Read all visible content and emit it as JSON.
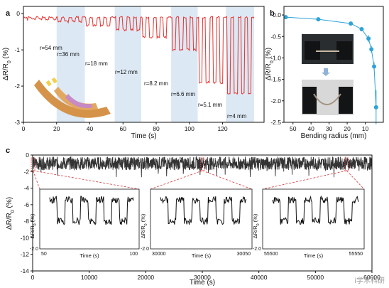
{
  "watermark": "i学术科研",
  "chart_data": [
    {
      "panel": "a",
      "type": "line",
      "xlabel": "Time (s)",
      "ylabel": "ΔR/R0 (%)",
      "xlim": [
        0,
        145
      ],
      "ylim": [
        -3,
        0.2
      ],
      "xticks": [
        0,
        20,
        40,
        60,
        80,
        100,
        120
      ],
      "yticks": [
        0,
        -1,
        -2,
        -3
      ],
      "line_color": "#e8332f",
      "shaded_bands": [
        [
          20,
          37
        ],
        [
          55,
          71
        ],
        [
          89,
          105
        ],
        [
          122,
          139
        ]
      ],
      "regions": [
        {
          "label": "r=54 mm",
          "start": 0,
          "end": 20,
          "dip": -0.05
        },
        {
          "label": "r=36 mm",
          "start": 20,
          "end": 37,
          "dip": -0.12
        },
        {
          "label": "r=18 mm",
          "start": 37,
          "end": 55,
          "dip": -0.22
        },
        {
          "label": "r=12 mm",
          "start": 55,
          "end": 71,
          "dip": -0.35
        },
        {
          "label": "r=8.2 mm",
          "start": 71,
          "end": 89,
          "dip": -0.55
        },
        {
          "label": "r=6.6 mm",
          "start": 89,
          "end": 105,
          "dip": -0.9
        },
        {
          "label": "r=5.1 mm",
          "start": 105,
          "end": 122,
          "dip": -1.8
        },
        {
          "label": "r=4 mm",
          "start": 122,
          "end": 139,
          "dip": -2.1
        }
      ]
    },
    {
      "panel": "b",
      "type": "scatter",
      "xlabel": "Bending radius (mm)",
      "ylabel": "ΔR/R0 (%)",
      "x_reversed": true,
      "xlim": [
        55,
        0
      ],
      "ylim": [
        -2.5,
        0.2
      ],
      "xticks": [
        50,
        40,
        30,
        20,
        10
      ],
      "yticks": [
        0.0,
        -0.5,
        -1.0,
        -1.5,
        -2.0,
        -2.5
      ],
      "marker_color": "#2ea3d8",
      "points": [
        {
          "x": 54,
          "y": -0.05,
          "err": 0.02
        },
        {
          "x": 36,
          "y": -0.1,
          "err": 0.02
        },
        {
          "x": 18,
          "y": -0.2,
          "err": 0.03
        },
        {
          "x": 12,
          "y": -0.33,
          "err": 0.05
        },
        {
          "x": 8.2,
          "y": -0.55,
          "err": 0.08
        },
        {
          "x": 6.6,
          "y": -0.8,
          "err": 0.08
        },
        {
          "x": 5.1,
          "y": -1.2,
          "err": 0.1
        },
        {
          "x": 4,
          "y": -2.15,
          "err": 0.4
        }
      ]
    },
    {
      "panel": "c",
      "type": "line",
      "xlabel": "Time (s)",
      "ylabel": "ΔR/R0 (%)",
      "xlim": [
        0,
        60000
      ],
      "ylim": [
        -14,
        0
      ],
      "xticks": [
        0,
        10000,
        20000,
        30000,
        40000,
        50000,
        60000
      ],
      "yticks": [
        0,
        -2,
        -4,
        -6,
        -8,
        -10,
        -12,
        -14
      ],
      "line_color": "#333333",
      "insets": [
        {
          "xlabel": "Time (s)",
          "ylabel": "ΔR/R0 (%)",
          "xlim": [
            50,
            100
          ],
          "xticks": [
            50,
            100
          ],
          "ylim": [
            -2.0,
            0
          ],
          "yticks": [
            -2.0
          ]
        },
        {
          "xlabel": "Time (s)",
          "ylabel": "ΔR/R0 (%)",
          "xlim": [
            30000,
            30050
          ],
          "xticks": [
            30000,
            30050
          ],
          "ylim": [
            -2.0,
            0
          ],
          "yticks": [
            -2.0
          ]
        },
        {
          "xlabel": "Time (s)",
          "ylabel": "ΔR/R0 (%)",
          "xlim": [
            55500,
            55550
          ],
          "xticks": [
            55500,
            55550
          ],
          "ylim": [
            -2.0,
            0
          ],
          "yticks": [
            -2.0
          ]
        }
      ]
    }
  ]
}
